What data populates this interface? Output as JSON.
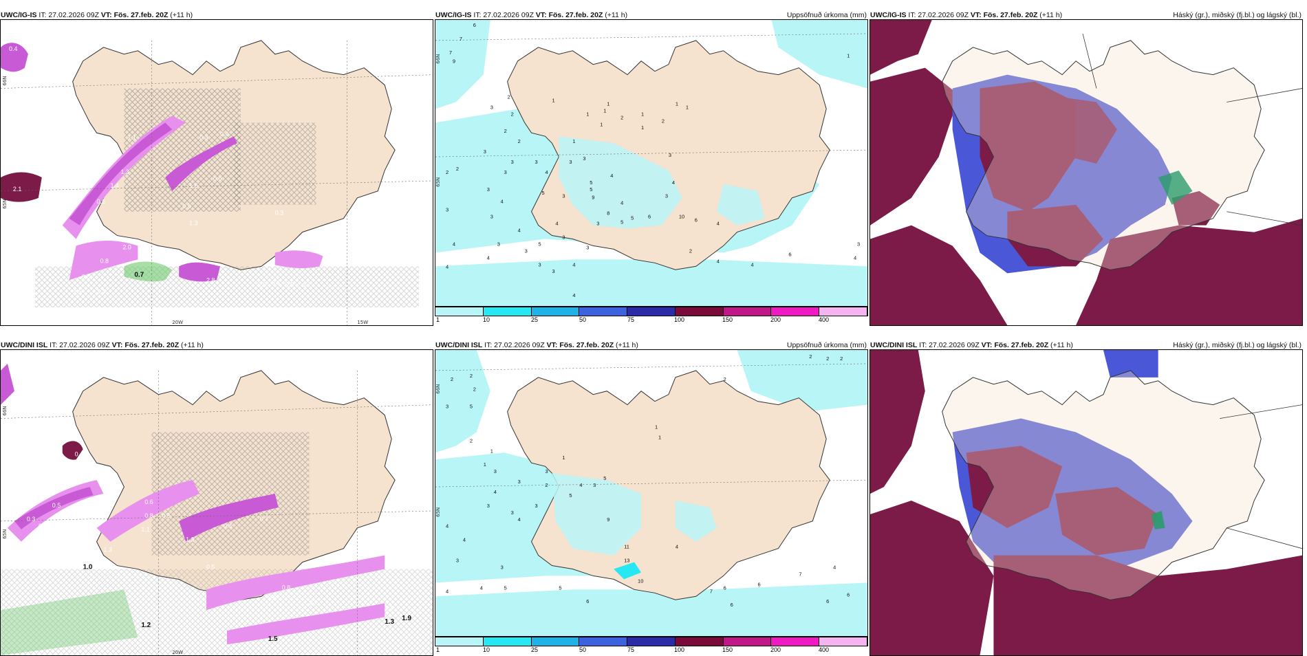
{
  "colors": {
    "land": "#f5e2cf",
    "precip_light": "#b8f5f7",
    "cyan": "#27e8f2",
    "mid_blue": "#1fb2e6",
    "blue": "#3b63e0",
    "dark_blue": "#2b2aa8",
    "maroon": "#7a0a3a",
    "magenta": "#c01888",
    "pink": "#ef1ac2",
    "light_pink": "#f4b4f0",
    "cloud_dark": "#7c1a48",
    "cloud_blue": "#4a58d8",
    "purple_precip": "#c85ad6",
    "light_purple": "#e890ee",
    "green": "#6dc96d"
  },
  "panels": [
    {
      "model": "UWC/IG-IS",
      "it": "IT: 27.02.2026 09Z",
      "vt_label": "VT:",
      "vt_value": "Fös. 27.feb. 20Z",
      "lead": "(+11 h)",
      "right_title": ""
    },
    {
      "model": "UWC/IG-IS",
      "it": "IT: 27.02.2026 09Z",
      "vt_label": "VT:",
      "vt_value": "Fös. 27.feb. 20Z",
      "lead": "(+11 h)",
      "right_title": "Uppsöfnuð úrkoma (mm)"
    },
    {
      "model": "UWC/IG-IS",
      "it": "IT: 27.02.2026 09Z",
      "vt_label": "VT:",
      "vt_value": "Fös. 27.feb. 20Z",
      "lead": "(+11 h)",
      "right_title": "Háský (gr.), miðský (fj.bl.) og lágský (bl.)"
    },
    {
      "model": "UWC/DINI ISL",
      "it": "IT: 27.02.2026 09Z",
      "vt_label": "VT:",
      "vt_value": "Fös. 27.feb. 20Z",
      "lead": "(+11 h)",
      "right_title": ""
    },
    {
      "model": "UWC/DINI ISL",
      "it": "IT: 27.02.2026 09Z",
      "vt_label": "VT:",
      "vt_value": "Fös. 27.feb. 20Z",
      "lead": "(+11 h)",
      "right_title": "Uppsöfnuð úrkoma (mm)"
    },
    {
      "model": "UWC/DINI ISL",
      "it": "IT: 27.02.2026 09Z",
      "vt_label": "VT:",
      "vt_value": "Fös. 27.feb. 20Z",
      "lead": "(+11 h)",
      "right_title": "Háský (gr.), miðský (fj.bl.) og lágský (bl.)"
    }
  ],
  "colorbar_labels": [
    "1",
    "10",
    "25",
    "50",
    "75",
    "100",
    "150",
    "200",
    "400"
  ],
  "axis_labels": {
    "lat_66": "66N",
    "lat_65": "65N",
    "lat_64": "64N",
    "lon_20": "20W",
    "lon_15": "15W"
  },
  "precip_values_top": [
    "6",
    "7",
    "7",
    "9",
    "3",
    "2",
    "2",
    "1",
    "1",
    "1",
    "1",
    "1",
    "2",
    "2",
    "1",
    "2",
    "3",
    "3",
    "3",
    "3",
    "4",
    "3",
    "3",
    "2",
    "2",
    "3",
    "3",
    "4",
    "5",
    "4",
    "3",
    "3",
    "4",
    "3",
    "3",
    "3",
    "3",
    "5",
    "9",
    "5",
    "4",
    "3",
    "8",
    "5",
    "5",
    "6",
    "10",
    "6",
    "4",
    "4",
    "5",
    "4",
    "3",
    "3",
    "2",
    "3",
    "3",
    "4",
    "4",
    "4",
    "6",
    "4",
    "4",
    "4",
    "3",
    "4",
    "1",
    "1",
    "2",
    "1",
    "1",
    "1",
    "4"
  ],
  "precip_values_bottom": [
    "2",
    "2",
    "2",
    "2",
    "2",
    "2",
    "2",
    "1",
    "1",
    "3",
    "5",
    "2",
    "1",
    "1",
    "3",
    "1",
    "4",
    "3",
    "3",
    "3",
    "2",
    "3",
    "3",
    "4",
    "5",
    "4",
    "3",
    "5",
    "11",
    "13",
    "10",
    "9",
    "4",
    "4",
    "3",
    "5",
    "6",
    "7",
    "6",
    "5",
    "7",
    "4",
    "6",
    "6",
    "4",
    "4",
    "3",
    "4",
    "6",
    "6"
  ],
  "t_labels_left_top": [
    "0.4",
    "2.1",
    "1.5",
    "0.9",
    "1.1",
    "1.3",
    "1.4",
    "0.6",
    "0.3",
    "0.4",
    "1.6",
    "0.9",
    "0.5",
    "0.3",
    "1.3",
    "0.7",
    "2.8",
    "2.1",
    "2.0",
    "0.8",
    "0.5",
    "1.5",
    "2.1",
    "0.6",
    "0.6",
    "0.5",
    "0.5",
    "0.7"
  ],
  "t_labels_left_bottom": [
    "0.4",
    "0.5",
    "0.3",
    "0.9",
    "1.2",
    "1.3",
    "0.6",
    "0.8",
    "0.5",
    "0.7",
    "1.3",
    "1.1",
    "0.4",
    "1.0",
    "1.2",
    "1.5",
    "1.3",
    "1.9",
    "1.0",
    "1.1",
    "0.5",
    "0.6",
    "0.8",
    "0.7"
  ]
}
